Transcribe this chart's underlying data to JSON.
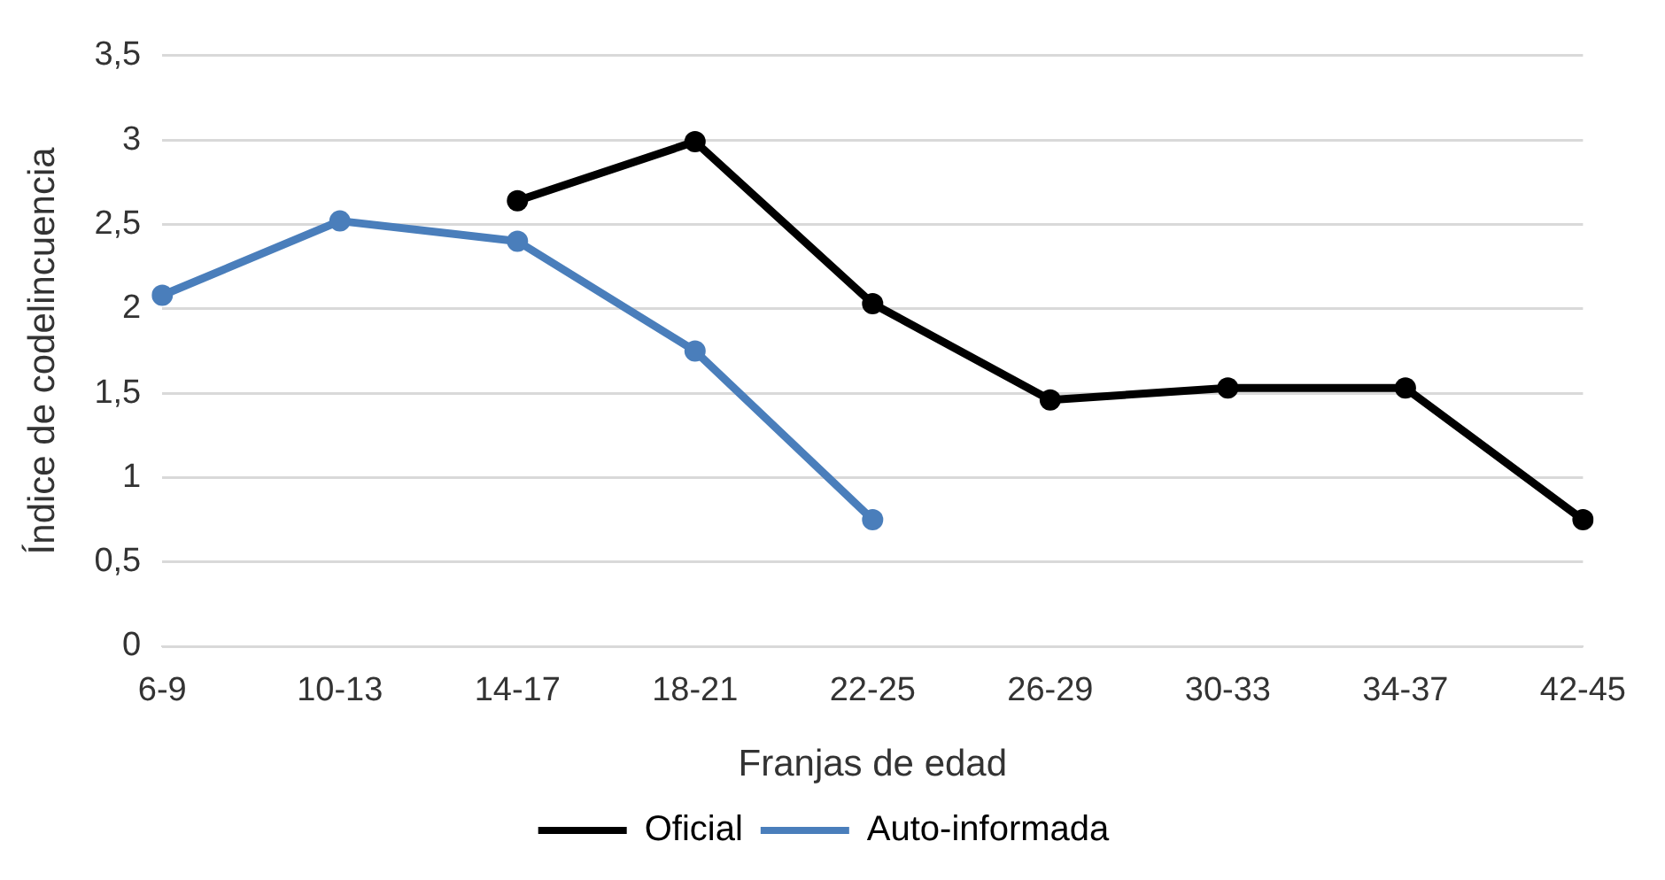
{
  "chart_data": {
    "type": "line",
    "xlabel": "Franjas de edad",
    "ylabel": "Índice de codelincuencia",
    "categories": [
      "6-9",
      "10-13",
      "14-17",
      "18-21",
      "22-25",
      "26-29",
      "30-33",
      "34-37",
      "42-45"
    ],
    "series": [
      {
        "name": "Oficial",
        "color": "#000000",
        "values": [
          null,
          null,
          2.64,
          2.99,
          2.03,
          1.46,
          1.53,
          1.53,
          0.75
        ]
      },
      {
        "name": "Auto-informada",
        "color": "#4a7ebb",
        "values": [
          2.08,
          2.52,
          2.4,
          1.75,
          0.75,
          null,
          null,
          null,
          null
        ]
      }
    ],
    "ylim": [
      0,
      3.5
    ],
    "yticks": [
      0,
      {
        "value": 0.5,
        "label": "0,5"
      },
      1,
      {
        "value": 1.5,
        "label": "1,5"
      },
      2,
      {
        "value": 2.5,
        "label": "2,5"
      },
      3,
      {
        "value": 3.5,
        "label": "3,5"
      }
    ],
    "grid": "y",
    "legend": "bottom",
    "marker": "circle",
    "line_style": "solid"
  }
}
